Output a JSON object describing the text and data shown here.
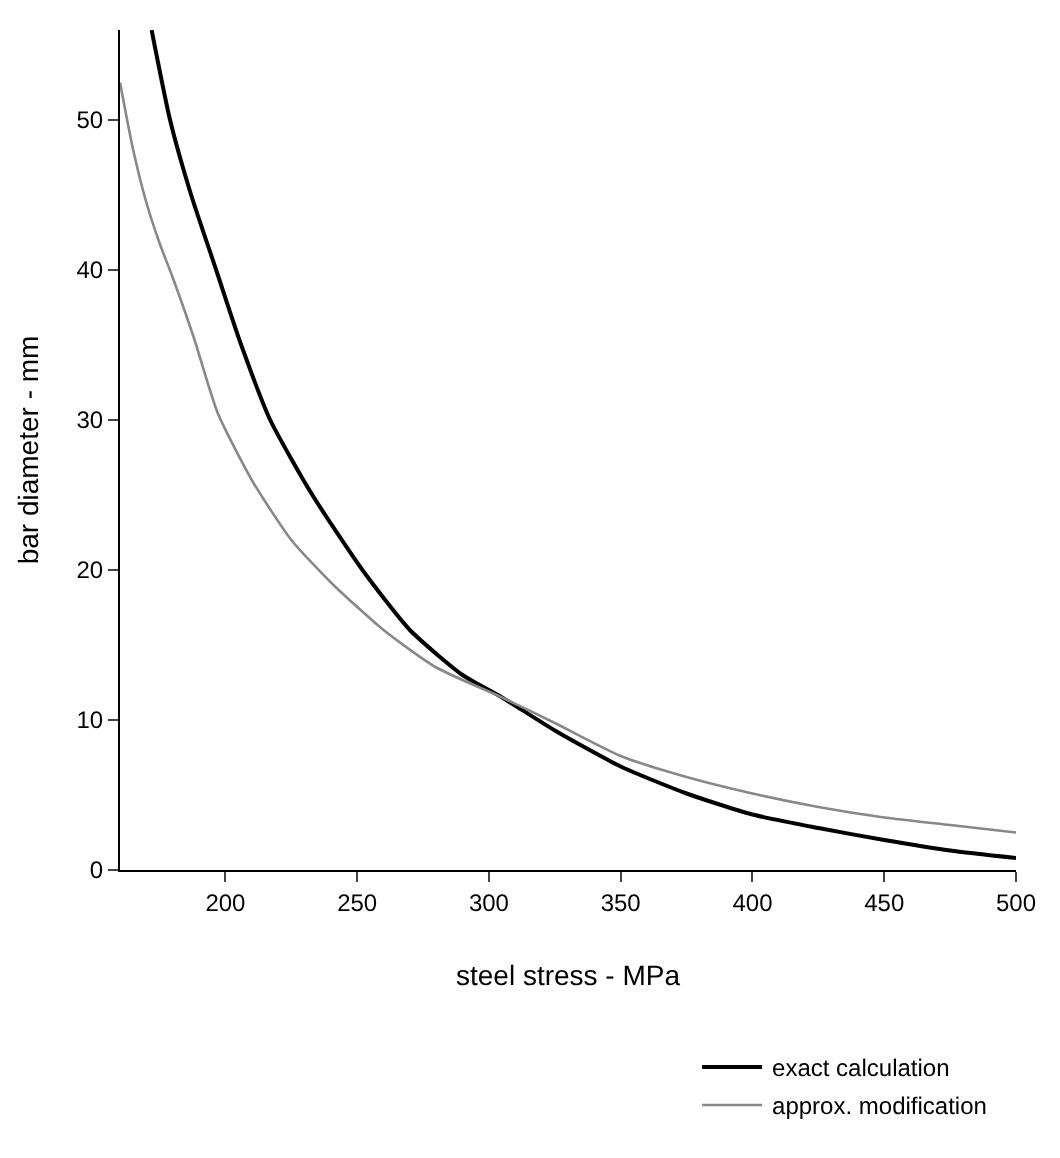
{
  "chart_data": {
    "type": "line",
    "xlabel": "steel stress - MPa",
    "ylabel": "bar diameter - mm",
    "xlim": [
      160,
      500
    ],
    "ylim": [
      0,
      56
    ],
    "xticks": [
      200,
      250,
      300,
      350,
      400,
      450,
      500
    ],
    "yticks": [
      0,
      10,
      20,
      30,
      40,
      50
    ],
    "legend": "bottom",
    "marker": "none",
    "line_style": "solid",
    "series": [
      {
        "name": "exact calculation",
        "color": "#000000",
        "x": [
          172,
          179,
          187,
          196.5,
          206,
          217,
          233,
          252,
          270,
          290,
          305,
          325,
          350,
          375,
          400,
          425,
          450,
          475,
          500
        ],
        "values": [
          56,
          50,
          45,
          40,
          35,
          30,
          25,
          20,
          16,
          13,
          11.5,
          9.3,
          6.9,
          5.1,
          3.7,
          2.8,
          2.0,
          1.3,
          0.8
        ]
      },
      {
        "name": "approx. modification",
        "color": "#888888",
        "x": [
          160,
          165,
          170,
          175,
          180,
          188,
          197,
          210,
          225,
          241,
          260,
          280,
          305,
          325,
          350,
          375,
          400,
          425,
          450,
          475,
          500
        ],
        "values": [
          52.5,
          48,
          44.5,
          41.8,
          39.5,
          35.5,
          30.5,
          26,
          22,
          19,
          16,
          13.5,
          11.5,
          9.8,
          7.6,
          6.2,
          5.1,
          4.2,
          3.5,
          3.0,
          2.5
        ]
      }
    ]
  }
}
